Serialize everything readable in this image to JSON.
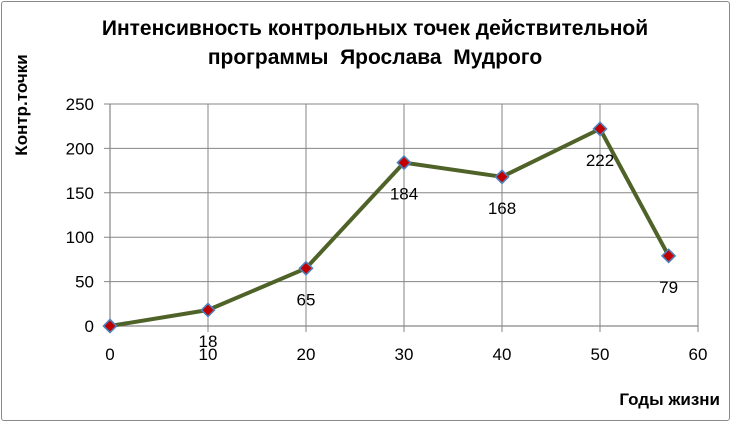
{
  "chart_data": {
    "type": "line",
    "title_lines": [
      "Интенсивность контрольных точек действительной",
      "программы  Ярослава  Мудрого"
    ],
    "xlabel": "Годы жизни",
    "ylabel": "Контр.точки",
    "x": [
      0,
      10,
      20,
      30,
      40,
      50,
      57
    ],
    "y": [
      0,
      18,
      65,
      184,
      168,
      222,
      79
    ],
    "data_labels": [
      "",
      "18",
      "65",
      "184",
      "168",
      "222",
      "79"
    ],
    "xlim": [
      0,
      60
    ],
    "ylim": [
      0,
      250
    ],
    "x_ticks": [
      0,
      10,
      20,
      30,
      40,
      50,
      60
    ],
    "y_ticks": [
      0,
      50,
      100,
      150,
      200,
      250
    ],
    "grid": true,
    "legend": "none",
    "colors": {
      "line": "#4f6228",
      "marker_fill": "#c00000",
      "marker_edge": "#4f81bd",
      "grid": "#868686"
    }
  }
}
